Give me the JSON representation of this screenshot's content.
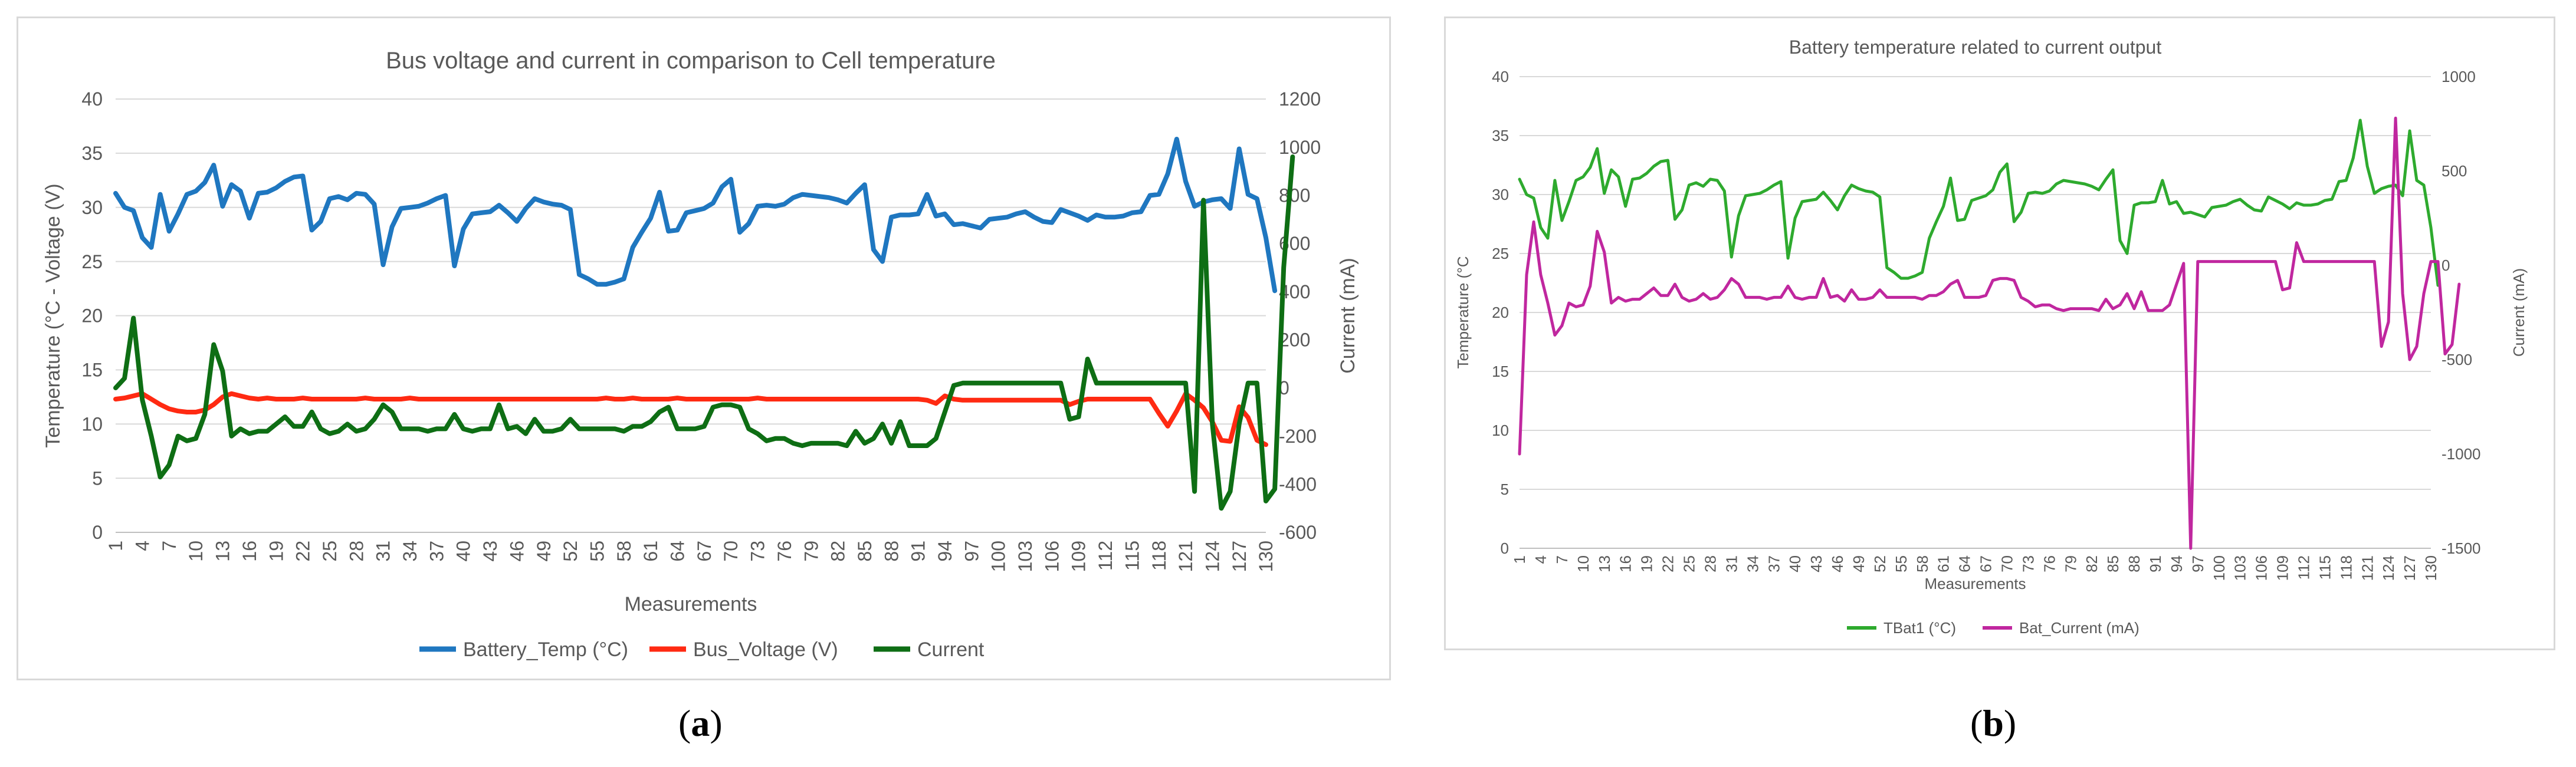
{
  "chart_data": [
    {
      "type": "line",
      "panel": "(a)",
      "title": "Bus voltage and current in comparison to Cell temperature",
      "xlabel": "Measurements",
      "ylabel_left": "Temperature (°C - Voltage (V)",
      "ylabel_right": "Current (mA)",
      "ylim_left": [
        0,
        40
      ],
      "ylim_right": [
        -600,
        1200
      ],
      "yticks_left": [
        "0",
        "5",
        "10",
        "15",
        "20",
        "25",
        "30",
        "35",
        "40"
      ],
      "yticks_right": [
        "-600",
        "-400",
        "-200",
        "0",
        "200",
        "400",
        "600",
        "800",
        "1000",
        "1200"
      ],
      "xticks": [
        "1",
        "4",
        "7",
        "10",
        "13",
        "16",
        "19",
        "22",
        "25",
        "28",
        "31",
        "34",
        "37",
        "40",
        "43",
        "46",
        "49",
        "52",
        "55",
        "58",
        "61",
        "64",
        "67",
        "70",
        "73",
        "76",
        "79",
        "82",
        "85",
        "88",
        "91",
        "94",
        "97",
        "100",
        "103",
        "106",
        "109",
        "112",
        "115",
        "118",
        "121",
        "124",
        "127",
        "130"
      ],
      "x_count": 130,
      "legend": "bottom",
      "series": [
        {
          "name": "Battery_Temp (°C)",
          "axis": "left",
          "color": "#1f77c0",
          "values": [
            31.3,
            30,
            29.7,
            27.2,
            26.3,
            31.2,
            27.8,
            29.4,
            31.2,
            31.5,
            32.3,
            33.9,
            30.1,
            32.1,
            31.5,
            29,
            31.3,
            31.4,
            31.8,
            32.4,
            32.8,
            32.9,
            27.9,
            28.7,
            30.8,
            31,
            30.7,
            31.3,
            31.2,
            30.3,
            24.7,
            28.2,
            29.9,
            30,
            30.1,
            30.4,
            30.8,
            31.1,
            24.6,
            28,
            29.4,
            29.5,
            29.6,
            30.2,
            29.5,
            28.7,
            29.9,
            30.8,
            30.5,
            30.3,
            30.2,
            29.8,
            23.8,
            23.4,
            22.9,
            22.9,
            23.1,
            23.4,
            26.3,
            27.7,
            29,
            31.4,
            27.8,
            27.9,
            29.5,
            29.7,
            29.9,
            30.4,
            31.9,
            32.6,
            27.7,
            28.5,
            30.1,
            30.2,
            30.1,
            30.3,
            30.9,
            31.2,
            31.1,
            31,
            30.9,
            30.7,
            30.4,
            31.3,
            32.1,
            26.1,
            25,
            29.1,
            29.3,
            29.3,
            29.4,
            31.2,
            29.2,
            29.4,
            28.4,
            28.5,
            28.3,
            28.1,
            28.9,
            29,
            29.1,
            29.4,
            29.6,
            29.1,
            28.7,
            28.6,
            29.8,
            29.5,
            29.2,
            28.8,
            29.3,
            29.1,
            29.1,
            29.2,
            29.5,
            29.6,
            31.1,
            31.2,
            33.1,
            36.3,
            32.4,
            30.1,
            30.5,
            30.7,
            30.8,
            29.9,
            35.4,
            31.2,
            30.8,
            27.2,
            22.3
          ]
        },
        {
          "name": "Bus_Voltage (V)",
          "axis": "left",
          "color": "#ff2a12",
          "values": [
            12.3,
            12.4,
            12.6,
            12.8,
            12.3,
            11.8,
            11.4,
            11.2,
            11.1,
            11.1,
            11.3,
            11.8,
            12.5,
            12.8,
            12.6,
            12.4,
            12.3,
            12.4,
            12.3,
            12.3,
            12.3,
            12.4,
            12.3,
            12.3,
            12.3,
            12.3,
            12.3,
            12.3,
            12.4,
            12.3,
            12.3,
            12.3,
            12.3,
            12.4,
            12.3,
            12.3,
            12.3,
            12.3,
            12.3,
            12.3,
            12.3,
            12.3,
            12.3,
            12.3,
            12.3,
            12.3,
            12.3,
            12.3,
            12.3,
            12.3,
            12.3,
            12.3,
            12.3,
            12.3,
            12.3,
            12.4,
            12.3,
            12.3,
            12.4,
            12.3,
            12.3,
            12.3,
            12.3,
            12.4,
            12.3,
            12.3,
            12.3,
            12.3,
            12.3,
            12.3,
            12.3,
            12.3,
            12.4,
            12.3,
            12.3,
            12.3,
            12.3,
            12.3,
            12.3,
            12.3,
            12.3,
            12.3,
            12.3,
            12.3,
            12.3,
            12.3,
            12.3,
            12.3,
            12.3,
            12.3,
            12.3,
            12.2,
            11.9,
            12.6,
            12.3,
            12.2,
            12.2,
            12.2,
            12.2,
            12.2,
            12.2,
            12.2,
            12.2,
            12.2,
            12.2,
            12.2,
            12.2,
            11.8,
            12.1,
            12.3,
            12.3,
            12.3,
            12.3,
            12.3,
            12.3,
            12.3,
            12.3,
            11,
            9.8,
            11.2,
            12.8,
            12.2,
            11.5,
            10.2,
            8.5,
            8.4,
            11.6,
            10.6,
            8.5,
            8.1
          ]
        },
        {
          "name": "Current",
          "axis": "right",
          "color": "#0e6e14",
          "values": [
            0,
            40,
            290,
            -50,
            -200,
            -370,
            -320,
            -200,
            -220,
            -210,
            -110,
            180,
            70,
            -200,
            -170,
            -190,
            -180,
            -180,
            -150,
            -120,
            -160,
            -160,
            -100,
            -170,
            -190,
            -180,
            -150,
            -180,
            -170,
            -130,
            -70,
            -100,
            -170,
            -170,
            -170,
            -180,
            -170,
            -170,
            -110,
            -170,
            -180,
            -170,
            -170,
            -70,
            -170,
            -160,
            -190,
            -130,
            -180,
            -180,
            -170,
            -130,
            -170,
            -170,
            -170,
            -170,
            -170,
            -180,
            -160,
            -160,
            -140,
            -100,
            -80,
            -170,
            -170,
            -170,
            -160,
            -80,
            -70,
            -70,
            -80,
            -170,
            -190,
            -220,
            -210,
            -210,
            -230,
            -240,
            -230,
            -230,
            -230,
            -230,
            -240,
            -180,
            -230,
            -210,
            -150,
            -230,
            -140,
            -240,
            -240,
            -240,
            -210,
            -100,
            10,
            20,
            20,
            20,
            20,
            20,
            20,
            20,
            20,
            20,
            20,
            20,
            20,
            -130,
            -120,
            120,
            20,
            20,
            20,
            20,
            20,
            20,
            20,
            20,
            20,
            20,
            20,
            -430,
            780,
            -150,
            -500,
            -430,
            -150,
            20,
            20,
            -470,
            -420,
            500,
            960
          ]
        }
      ]
    },
    {
      "type": "line",
      "panel": "(b)",
      "title": "Battery temperature related to current output",
      "xlabel": "Measurements",
      "ylabel_left": "Temperature (°C",
      "ylabel_right": "Current (mA)",
      "ylim_left": [
        0,
        40
      ],
      "ylim_right": [
        -1500,
        1000
      ],
      "yticks_left": [
        "0",
        "5",
        "10",
        "15",
        "20",
        "25",
        "30",
        "35",
        "40"
      ],
      "yticks_right": [
        "-1500",
        "-1000",
        "-500",
        "0",
        "500",
        "1000"
      ],
      "xticks": [
        "1",
        "4",
        "7",
        "10",
        "13",
        "16",
        "19",
        "22",
        "25",
        "28",
        "31",
        "34",
        "37",
        "40",
        "43",
        "46",
        "49",
        "52",
        "55",
        "58",
        "61",
        "64",
        "67",
        "70",
        "73",
        "76",
        "79",
        "82",
        "85",
        "88",
        "91",
        "94",
        "97",
        "100",
        "103",
        "106",
        "109",
        "112",
        "115",
        "118",
        "121",
        "124",
        "127",
        "130"
      ],
      "x_count": 130,
      "legend": "bottom",
      "series": [
        {
          "name": "TBat1 (°C)",
          "axis": "left",
          "color": "#2eaa2e",
          "values": [
            31.3,
            30,
            29.7,
            27.2,
            26.3,
            31.2,
            27.8,
            29.4,
            31.2,
            31.5,
            32.3,
            33.9,
            30.1,
            32.1,
            31.5,
            29,
            31.3,
            31.4,
            31.8,
            32.4,
            32.8,
            32.9,
            27.9,
            28.7,
            30.8,
            31,
            30.7,
            31.3,
            31.2,
            30.3,
            24.7,
            28.2,
            29.9,
            30,
            30.1,
            30.4,
            30.8,
            31.1,
            24.6,
            28,
            29.4,
            29.5,
            29.6,
            30.2,
            29.5,
            28.7,
            29.9,
            30.8,
            30.5,
            30.3,
            30.2,
            29.8,
            23.8,
            23.4,
            22.9,
            22.9,
            23.1,
            23.4,
            26.3,
            27.7,
            29,
            31.4,
            27.8,
            27.9,
            29.5,
            29.7,
            29.9,
            30.4,
            31.9,
            32.6,
            27.7,
            28.5,
            30.1,
            30.2,
            30.1,
            30.3,
            30.9,
            31.2,
            31.1,
            31,
            30.9,
            30.7,
            30.4,
            31.3,
            32.1,
            26.1,
            25,
            29.1,
            29.3,
            29.3,
            29.4,
            31.2,
            29.2,
            29.4,
            28.4,
            28.5,
            28.3,
            28.1,
            28.9,
            29,
            29.1,
            29.4,
            29.6,
            29.1,
            28.7,
            28.6,
            29.8,
            29.5,
            29.2,
            28.8,
            29.3,
            29.1,
            29.1,
            29.2,
            29.5,
            29.6,
            31.1,
            31.2,
            33.1,
            36.3,
            32.4,
            30.1,
            30.5,
            30.7,
            30.8,
            29.9,
            35.4,
            31.2,
            30.8,
            27.2,
            22.3
          ]
        },
        {
          "name": "Bat_Current (mA)",
          "axis": "right",
          "color": "#c0279f",
          "values": [
            -1000,
            -50,
            230,
            -50,
            -200,
            -370,
            -320,
            -200,
            -220,
            -210,
            -110,
            180,
            70,
            -200,
            -170,
            -190,
            -180,
            -180,
            -150,
            -120,
            -160,
            -160,
            -100,
            -170,
            -190,
            -180,
            -150,
            -180,
            -170,
            -130,
            -70,
            -100,
            -170,
            -170,
            -170,
            -180,
            -170,
            -170,
            -110,
            -170,
            -180,
            -170,
            -170,
            -70,
            -170,
            -160,
            -190,
            -130,
            -180,
            -180,
            -170,
            -130,
            -170,
            -170,
            -170,
            -170,
            -170,
            -180,
            -160,
            -160,
            -140,
            -100,
            -80,
            -170,
            -170,
            -170,
            -160,
            -80,
            -70,
            -70,
            -80,
            -170,
            -190,
            -220,
            -210,
            -210,
            -230,
            -240,
            -230,
            -230,
            -230,
            -230,
            -240,
            -180,
            -230,
            -210,
            -150,
            -230,
            -140,
            -240,
            -240,
            -240,
            -210,
            -100,
            10,
            -1500,
            20,
            20,
            20,
            20,
            20,
            20,
            20,
            20,
            20,
            20,
            20,
            20,
            -130,
            -120,
            120,
            20,
            20,
            20,
            20,
            20,
            20,
            20,
            20,
            20,
            20,
            20,
            -430,
            -300,
            780,
            -150,
            -500,
            -430,
            -150,
            20,
            20,
            -470,
            -420,
            -100
          ]
        }
      ]
    }
  ],
  "labels": {
    "panel_a_letter": "a",
    "panel_b_letter": "b"
  }
}
